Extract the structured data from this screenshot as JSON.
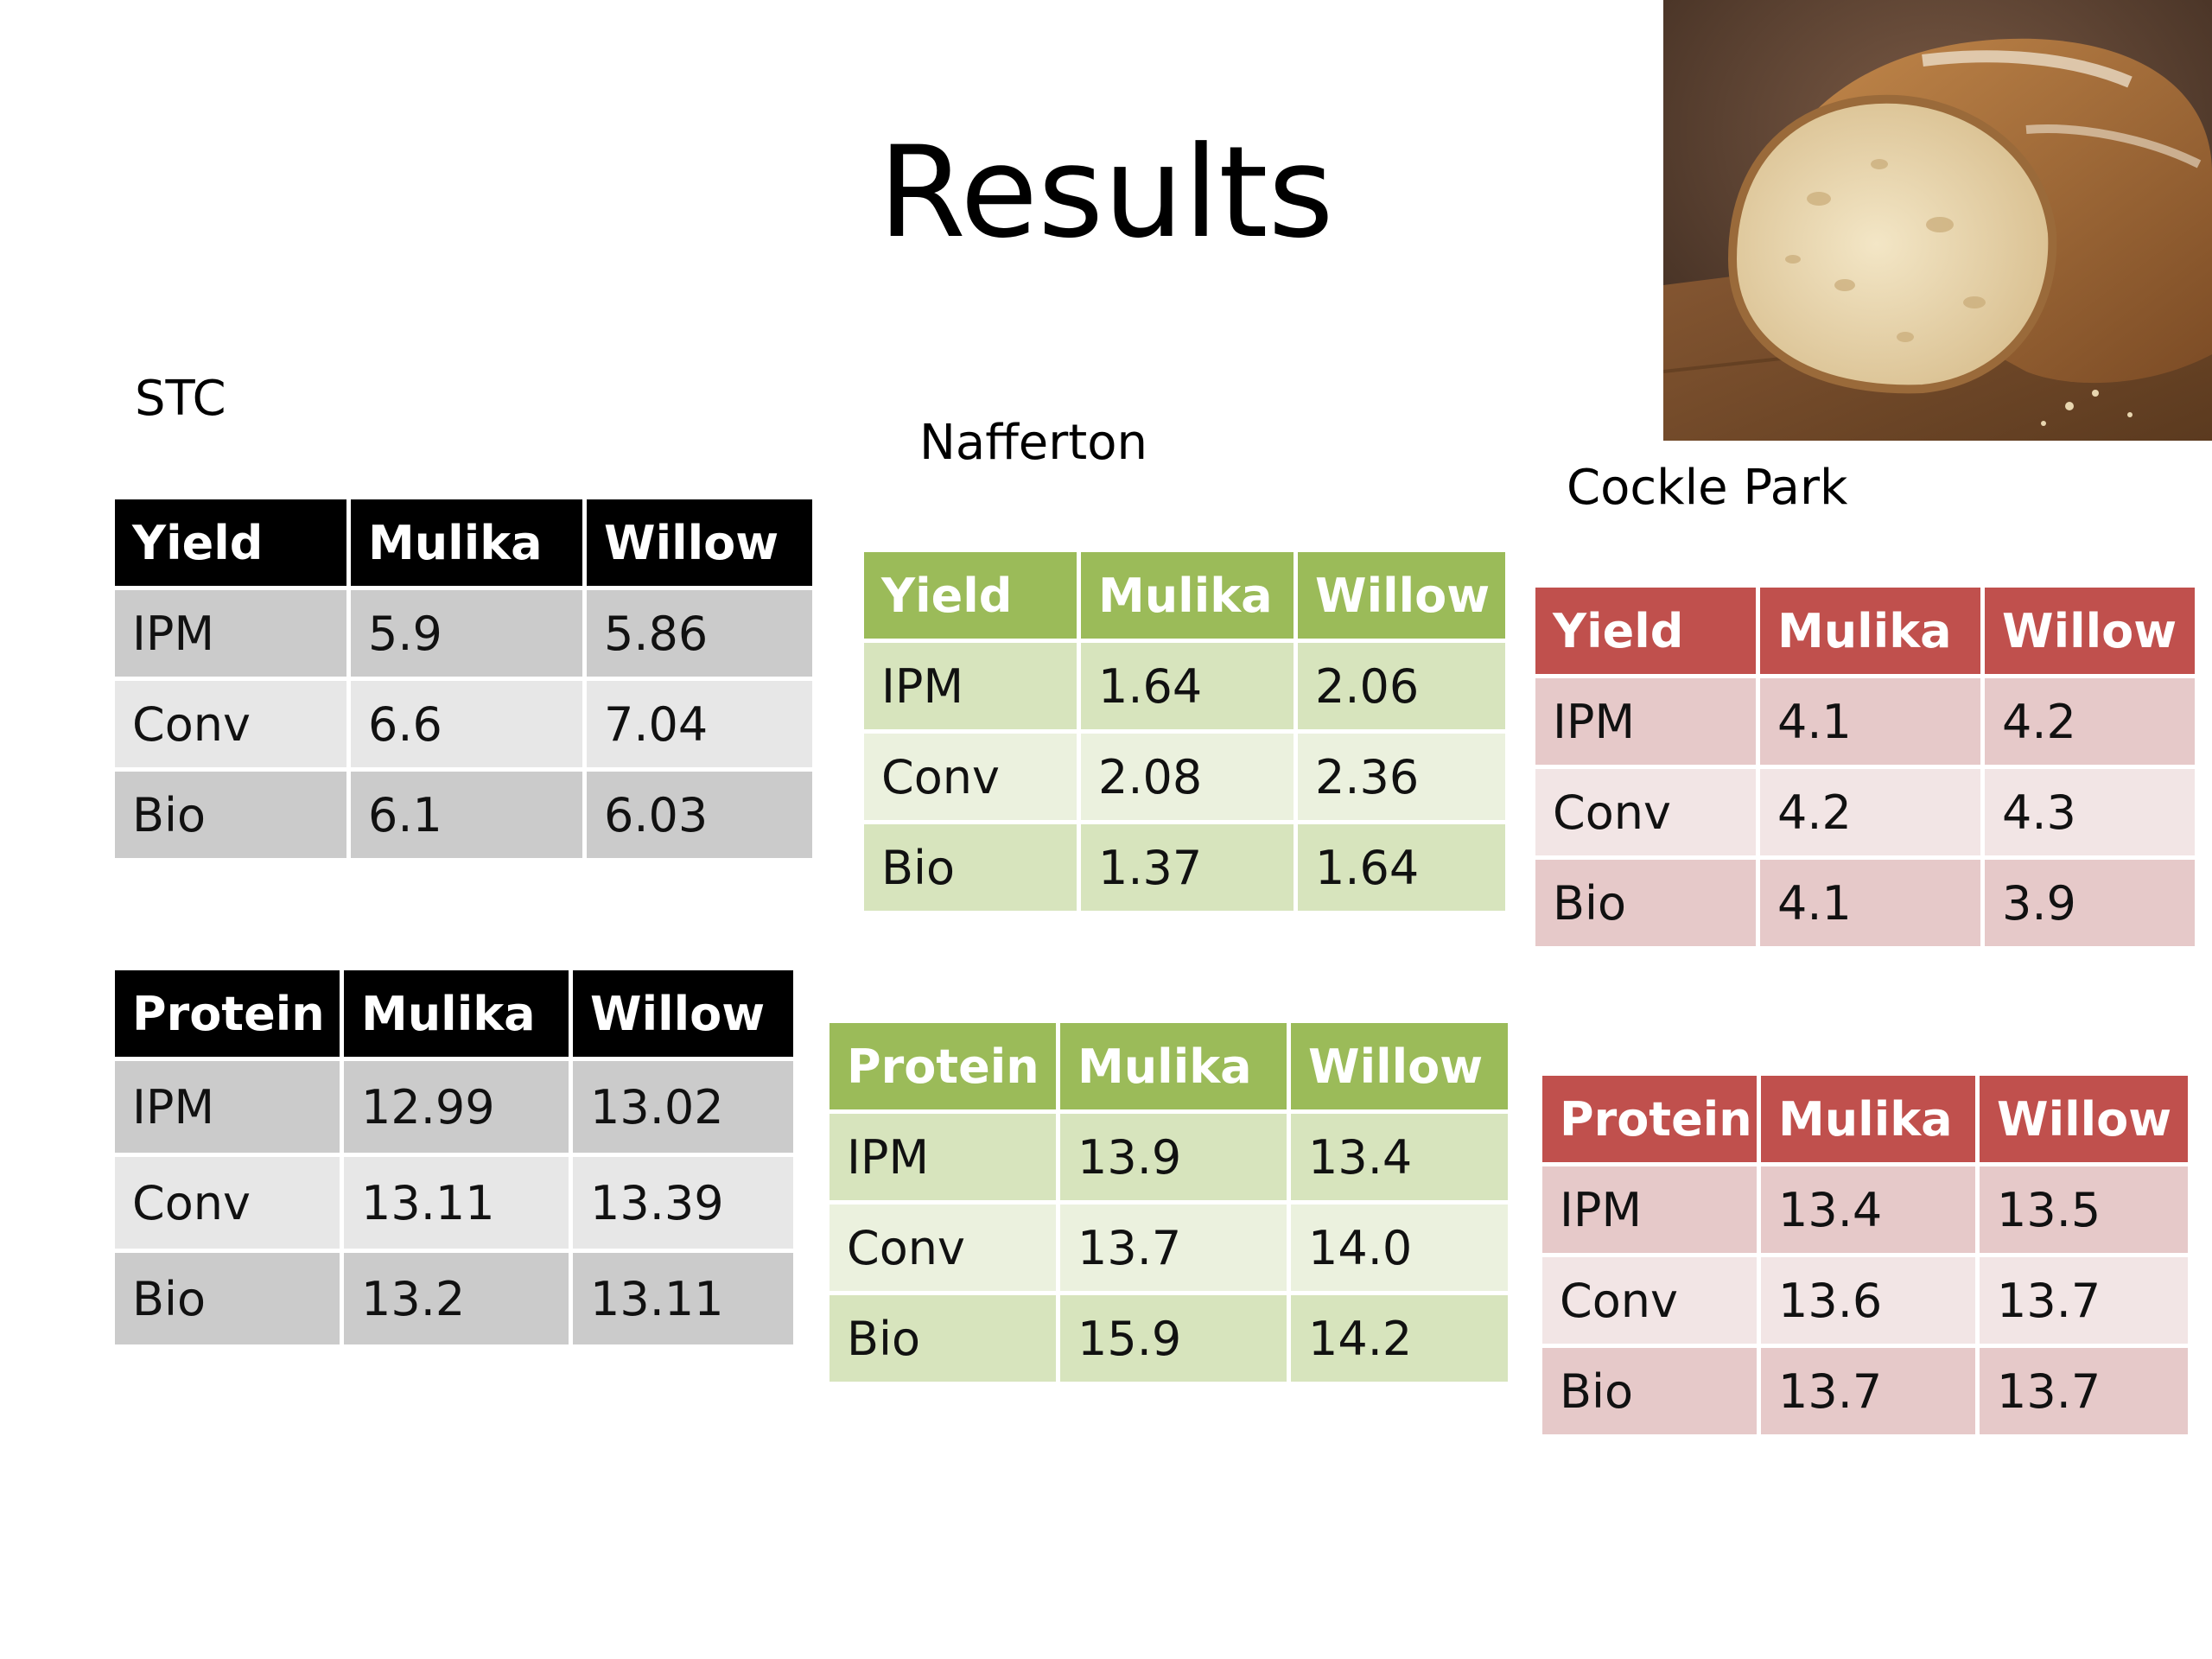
{
  "slide": {
    "title": "Results"
  },
  "sites": [
    {
      "name": "STC",
      "yield": {
        "header": [
          "Yield",
          "Mulika",
          "Willow"
        ],
        "rows": [
          {
            "label": "IPM",
            "mulika": "5.9",
            "willow": "5.86"
          },
          {
            "label": "Conv",
            "mulika": "6.6",
            "willow": "7.04"
          },
          {
            "label": "Bio",
            "mulika": "6.1",
            "willow": "6.03"
          }
        ]
      },
      "protein": {
        "header": [
          "Protein",
          "Mulika",
          "Willow"
        ],
        "rows": [
          {
            "label": "IPM",
            "mulika": "12.99",
            "willow": "13.02"
          },
          {
            "label": "Conv",
            "mulika": "13.11",
            "willow": "13.39"
          },
          {
            "label": "Bio",
            "mulika": "13.2",
            "willow": "13.11"
          }
        ]
      }
    },
    {
      "name": "Nafferton",
      "yield": {
        "header": [
          "Yield",
          "Mulika",
          "Willow"
        ],
        "rows": [
          {
            "label": "IPM",
            "mulika": "1.64",
            "willow": "2.06"
          },
          {
            "label": "Conv",
            "mulika": "2.08",
            "willow": "2.36"
          },
          {
            "label": "Bio",
            "mulika": "1.37",
            "willow": "1.64"
          }
        ]
      },
      "protein": {
        "header": [
          "Protein",
          "Mulika",
          "Willow"
        ],
        "rows": [
          {
            "label": "IPM",
            "mulika": "13.9",
            "willow": "13.4"
          },
          {
            "label": "Conv",
            "mulika": "13.7",
            "willow": "14.0"
          },
          {
            "label": "Bio",
            "mulika": "15.9",
            "willow": "14.2"
          }
        ]
      }
    },
    {
      "name": "Cockle Park",
      "yield": {
        "header": [
          "Yield",
          "Mulika",
          "Willow"
        ],
        "rows": [
          {
            "label": "IPM",
            "mulika": "4.1",
            "willow": "4.2"
          },
          {
            "label": "Conv",
            "mulika": "4.2",
            "willow": "4.3"
          },
          {
            "label": "Bio",
            "mulika": "4.1",
            "willow": "3.9"
          }
        ]
      },
      "protein": {
        "header": [
          "Protein",
          "Mulika",
          "Willow"
        ],
        "rows": [
          {
            "label": "IPM",
            "mulika": "13.4",
            "willow": "13.5"
          },
          {
            "label": "Conv",
            "mulika": "13.6",
            "willow": "13.7"
          },
          {
            "label": "Bio",
            "mulika": "13.7",
            "willow": "13.7"
          }
        ]
      }
    }
  ],
  "colors": {
    "stc_header": "#000000",
    "nafferton_header": "#9bbb59",
    "cockle_park_header": "#c0504d",
    "highlight_text": "#ff0000"
  },
  "image": {
    "icon": "bread-loaf-photo"
  }
}
